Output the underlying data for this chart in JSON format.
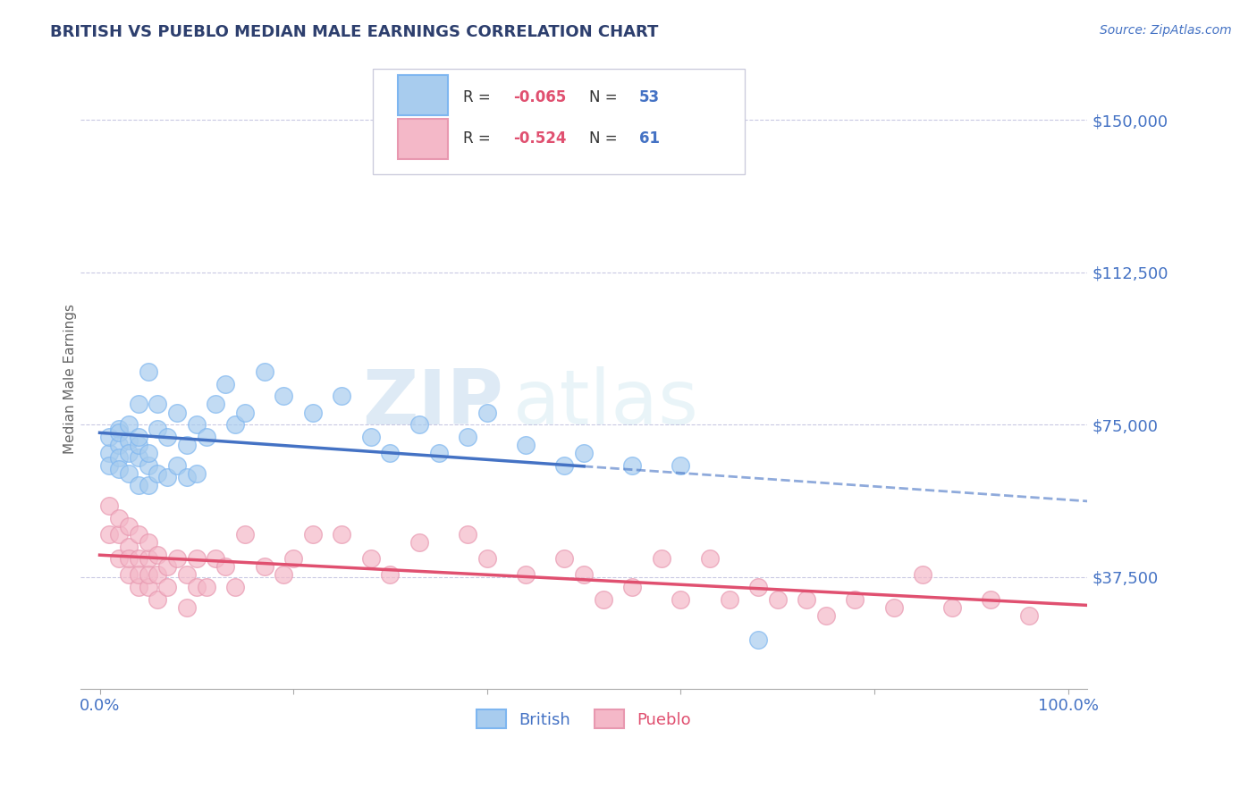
{
  "title": "BRITISH VS PUEBLO MEDIAN MALE EARNINGS CORRELATION CHART",
  "source_text": "Source: ZipAtlas.com",
  "ylabel": "Median Male Earnings",
  "xlim": [
    -0.02,
    1.02
  ],
  "ylim": [
    10000,
    162500
  ],
  "yticks": [
    37500,
    75000,
    112500,
    150000
  ],
  "ytick_labels": [
    "$37,500",
    "$75,000",
    "$112,500",
    "$150,000"
  ],
  "xticks": [
    0.0,
    0.2,
    0.4,
    0.6,
    0.8,
    1.0
  ],
  "xtick_labels": [
    "0.0%",
    "",
    "",
    "",
    "",
    "100.0%"
  ],
  "title_color": "#2d3f6e",
  "axis_color": "#4472C4",
  "background_color": "#FFFFFF",
  "grid_color": "#BBBBDD",
  "british": {
    "name": "British",
    "dot_color": "#A8CCEE",
    "dot_edge": "#7EB6F0",
    "line_color": "#4472C4",
    "R": "-0.065",
    "N": "53",
    "x": [
      0.01,
      0.01,
      0.01,
      0.02,
      0.02,
      0.02,
      0.02,
      0.02,
      0.03,
      0.03,
      0.03,
      0.03,
      0.04,
      0.04,
      0.04,
      0.04,
      0.04,
      0.05,
      0.05,
      0.05,
      0.05,
      0.06,
      0.06,
      0.06,
      0.07,
      0.07,
      0.08,
      0.08,
      0.09,
      0.09,
      0.1,
      0.1,
      0.11,
      0.12,
      0.13,
      0.14,
      0.15,
      0.17,
      0.19,
      0.22,
      0.25,
      0.28,
      0.3,
      0.33,
      0.35,
      0.38,
      0.4,
      0.44,
      0.48,
      0.5,
      0.55,
      0.6,
      0.68
    ],
    "y": [
      68000,
      72000,
      65000,
      74000,
      70000,
      67000,
      73000,
      64000,
      71000,
      68000,
      75000,
      63000,
      67000,
      70000,
      72000,
      60000,
      80000,
      65000,
      60000,
      68000,
      88000,
      63000,
      74000,
      80000,
      72000,
      62000,
      78000,
      65000,
      70000,
      62000,
      75000,
      63000,
      72000,
      80000,
      85000,
      75000,
      78000,
      88000,
      82000,
      78000,
      82000,
      72000,
      68000,
      75000,
      68000,
      72000,
      78000,
      70000,
      65000,
      68000,
      65000,
      65000,
      22000
    ]
  },
  "pueblo": {
    "name": "Pueblo",
    "dot_color": "#F4B8C8",
    "dot_edge": "#E898B0",
    "line_color": "#E05070",
    "R": "-0.524",
    "N": "61",
    "x": [
      0.01,
      0.01,
      0.02,
      0.02,
      0.02,
      0.03,
      0.03,
      0.03,
      0.03,
      0.04,
      0.04,
      0.04,
      0.04,
      0.05,
      0.05,
      0.05,
      0.05,
      0.06,
      0.06,
      0.06,
      0.07,
      0.07,
      0.08,
      0.09,
      0.09,
      0.1,
      0.1,
      0.11,
      0.12,
      0.13,
      0.14,
      0.15,
      0.17,
      0.19,
      0.2,
      0.22,
      0.25,
      0.28,
      0.3,
      0.33,
      0.38,
      0.4,
      0.44,
      0.48,
      0.5,
      0.52,
      0.55,
      0.58,
      0.6,
      0.63,
      0.65,
      0.68,
      0.7,
      0.73,
      0.75,
      0.78,
      0.82,
      0.85,
      0.88,
      0.92,
      0.96
    ],
    "y": [
      55000,
      48000,
      48000,
      42000,
      52000,
      45000,
      38000,
      50000,
      42000,
      35000,
      48000,
      42000,
      38000,
      35000,
      42000,
      38000,
      46000,
      38000,
      32000,
      43000,
      35000,
      40000,
      42000,
      30000,
      38000,
      35000,
      42000,
      35000,
      42000,
      40000,
      35000,
      48000,
      40000,
      38000,
      42000,
      48000,
      48000,
      42000,
      38000,
      46000,
      48000,
      42000,
      38000,
      42000,
      38000,
      32000,
      35000,
      42000,
      32000,
      42000,
      32000,
      35000,
      32000,
      32000,
      28000,
      32000,
      30000,
      38000,
      30000,
      32000,
      28000
    ]
  },
  "watermark_zip": "ZIP",
  "watermark_atlas": "atlas",
  "legend_R_color": "#E05070",
  "legend_N_color": "#4472C4"
}
